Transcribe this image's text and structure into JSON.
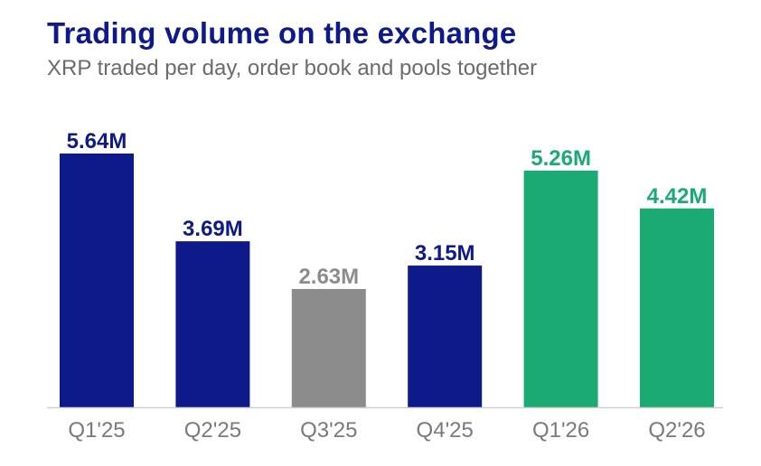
{
  "chart_data": {
    "type": "bar",
    "title": "Trading volume on the exchange",
    "subtitle": "XRP traded per day, order book and pools together",
    "xlabel": "",
    "ylabel": "",
    "categories": [
      "Q1'25",
      "Q2'25",
      "Q3'25",
      "Q4'25",
      "Q1'26",
      "Q2'26"
    ],
    "values": [
      5.64,
      3.69,
      2.63,
      3.15,
      5.26,
      4.42
    ],
    "value_labels": [
      "5.64M",
      "3.69M",
      "2.63M",
      "3.15M",
      "5.26M",
      "4.42M"
    ],
    "bar_colors": [
      "#0f1a8a",
      "#0f1a8a",
      "#8c8c8c",
      "#0f1a8a",
      "#1aab74",
      "#1aab74"
    ],
    "ylim": [
      0,
      5.64
    ],
    "grid": false,
    "legend": "none"
  },
  "colors": {
    "title": "#0f1a8a",
    "subtitle": "#6b6b6b",
    "axis_line": "#cfcfcf",
    "tick_label": "#7a7a7a"
  }
}
